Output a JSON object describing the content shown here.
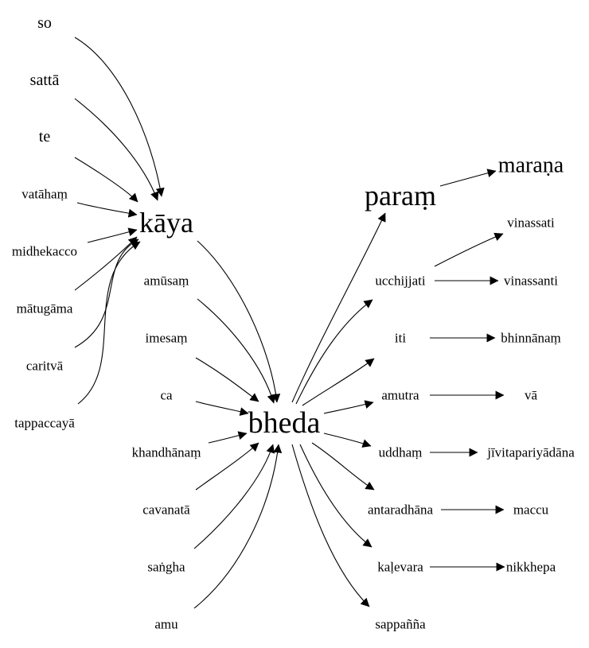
{
  "nodes": {
    "so": "so",
    "satta": "sattā",
    "te": "te",
    "vataham": "vatāhaṃ",
    "midhekacco": "midhekacco",
    "matugama": "mātugāma",
    "caritva": "caritvā",
    "tappaccaya": "tappaccayā",
    "kaya": "kāya",
    "amusam": "amūsaṃ",
    "imesam": "imesaṃ",
    "ca": "ca",
    "khandhanam": "khandhānaṃ",
    "cavanata": "cavanatā",
    "sangha": "saṅgha",
    "amu": "amu",
    "bheda": "bheda",
    "param": "paraṃ",
    "marana": "maraṇa",
    "vinassati": "vinassati",
    "ucchijjati": "ucchijjati",
    "vinassanti": "vinassanti",
    "iti": "iti",
    "bhinnanam": "bhinnānaṃ",
    "amutra": "amutra",
    "va": "vā",
    "uddham": "uddhaṃ",
    "jivitapariyadana": "jīvitapariyādāna",
    "antaradhana": "antaradhāna",
    "maccu": "maccu",
    "kalevara": "kaḷevara",
    "nikkhepa": "nikkhepa",
    "sappanna": "sappañña"
  },
  "edges": [
    [
      "so",
      "kaya"
    ],
    [
      "satta",
      "kaya"
    ],
    [
      "te",
      "kaya"
    ],
    [
      "vataham",
      "kaya"
    ],
    [
      "midhekacco",
      "kaya"
    ],
    [
      "matugama",
      "kaya"
    ],
    [
      "caritva",
      "kaya"
    ],
    [
      "tappaccaya",
      "kaya"
    ],
    [
      "kaya",
      "bheda"
    ],
    [
      "amusam",
      "bheda"
    ],
    [
      "imesam",
      "bheda"
    ],
    [
      "ca",
      "bheda"
    ],
    [
      "khandhanam",
      "bheda"
    ],
    [
      "cavanata",
      "bheda"
    ],
    [
      "sangha",
      "bheda"
    ],
    [
      "amu",
      "bheda"
    ],
    [
      "bheda",
      "param"
    ],
    [
      "bheda",
      "ucchijjati"
    ],
    [
      "bheda",
      "iti"
    ],
    [
      "bheda",
      "amutra"
    ],
    [
      "bheda",
      "uddham"
    ],
    [
      "bheda",
      "antaradhana"
    ],
    [
      "bheda",
      "kalevara"
    ],
    [
      "bheda",
      "sappanna"
    ],
    [
      "param",
      "marana"
    ],
    [
      "ucchijjati",
      "vinassati"
    ],
    [
      "ucchijjati",
      "vinassanti"
    ],
    [
      "iti",
      "bhinnanam"
    ],
    [
      "amutra",
      "va"
    ],
    [
      "uddham",
      "jivitapariyadana"
    ],
    [
      "antaradhana",
      "maccu"
    ],
    [
      "kalevara",
      "nikkhepa"
    ]
  ]
}
